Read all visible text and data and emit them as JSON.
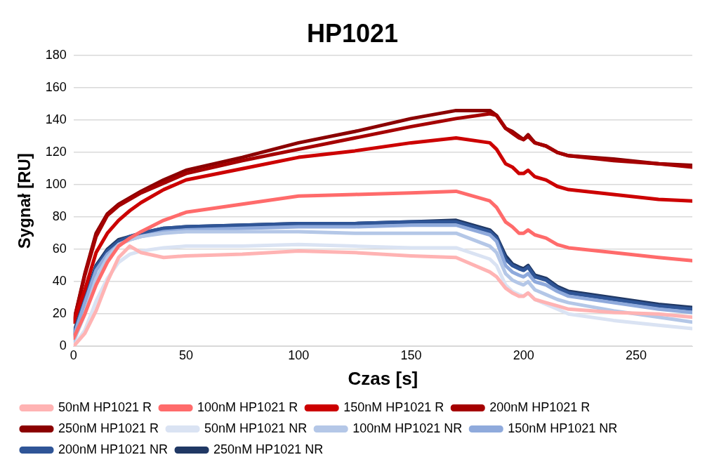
{
  "chart_data": {
    "type": "line",
    "title": "HP1021",
    "xlabel": "Czas [s]",
    "ylabel": "Sygnał [RU]",
    "x": [
      0,
      5,
      10,
      15,
      20,
      25,
      30,
      40,
      50,
      75,
      100,
      125,
      150,
      170,
      185,
      188,
      192,
      195,
      198,
      200,
      202,
      205,
      210,
      215,
      220,
      240,
      260,
      275
    ],
    "xlim": [
      0,
      275
    ],
    "xticks": [
      0,
      50,
      100,
      150,
      200,
      250
    ],
    "ylim": [
      0,
      180
    ],
    "yticks": [
      0,
      20,
      40,
      60,
      80,
      100,
      120,
      140,
      160,
      180
    ],
    "grid": "y",
    "legend": "bottom",
    "marker": "none",
    "line_style": "solid",
    "series": [
      {
        "name": "50nM HP1021 R",
        "color": "#ffb3b3",
        "values": [
          0,
          8,
          22,
          40,
          55,
          62,
          58,
          55,
          56,
          57,
          59,
          58,
          56,
          55,
          46,
          43,
          36,
          33,
          31,
          31,
          33,
          29,
          27,
          25,
          23,
          21,
          20,
          18
        ]
      },
      {
        "name": "100nM HP1021 R",
        "color": "#ff6b6b",
        "values": [
          5,
          20,
          38,
          52,
          62,
          67,
          71,
          78,
          83,
          88,
          93,
          94,
          95,
          96,
          90,
          86,
          77,
          74,
          70,
          70,
          72,
          69,
          67,
          63,
          61,
          58,
          55,
          53
        ]
      },
      {
        "name": "150nM HP1021 R",
        "color": "#cc0000",
        "values": [
          15,
          35,
          58,
          70,
          78,
          84,
          89,
          97,
          103,
          110,
          117,
          121,
          126,
          129,
          126,
          122,
          113,
          111,
          107,
          107,
          109,
          105,
          103,
          99,
          97,
          94,
          91,
          90
        ]
      },
      {
        "name": "200nM HP1021 R",
        "color": "#a50000",
        "values": [
          15,
          44,
          68,
          81,
          87,
          91,
          95,
          101,
          107,
          115,
          122,
          129,
          136,
          141,
          144,
          143,
          135,
          132,
          129,
          128,
          130,
          126,
          124,
          120,
          118,
          115,
          113,
          111
        ]
      },
      {
        "name": "250nM HP1021 R",
        "color": "#8b0000",
        "values": [
          15,
          45,
          70,
          82,
          88,
          92,
          96,
          103,
          109,
          117,
          126,
          133,
          141,
          146,
          146,
          143,
          135,
          133,
          130,
          128,
          131,
          126,
          124,
          120,
          118,
          116,
          113,
          112
        ]
      },
      {
        "name": "50nM HP1021 NR",
        "color": "#dae3f3",
        "values": [
          0,
          10,
          28,
          42,
          52,
          57,
          59,
          61,
          62,
          62,
          63,
          62,
          61,
          61,
          54,
          50,
          38,
          34,
          32,
          31,
          33,
          29,
          26,
          23,
          20,
          16,
          13,
          11
        ]
      },
      {
        "name": "100nM HP1021 NR",
        "color": "#b4c7e7",
        "values": [
          3,
          20,
          42,
          55,
          63,
          66,
          68,
          70,
          71,
          71,
          71,
          70,
          70,
          70,
          62,
          58,
          45,
          41,
          39,
          38,
          40,
          35,
          32,
          29,
          27,
          22,
          18,
          15
        ]
      },
      {
        "name": "150nM HP1021 NR",
        "color": "#8faadc",
        "values": [
          6,
          27,
          47,
          57,
          63,
          66,
          68,
          71,
          72,
          73,
          74,
          74,
          75,
          75,
          69,
          65,
          50,
          46,
          44,
          43,
          45,
          40,
          38,
          34,
          31,
          27,
          23,
          21
        ]
      },
      {
        "name": "200nM HP1021 NR",
        "color": "#2f5597",
        "values": [
          7,
          29,
          49,
          59,
          65,
          68,
          70,
          73,
          74,
          75,
          76,
          76,
          77,
          77,
          71,
          67,
          54,
          50,
          48,
          47,
          49,
          43,
          41,
          36,
          33,
          29,
          25,
          23
        ]
      },
      {
        "name": "250nM HP1021 NR",
        "color": "#203864",
        "values": [
          8,
          30,
          50,
          60,
          66,
          68,
          70,
          73,
          74,
          75,
          76,
          76,
          77,
          78,
          72,
          68,
          56,
          51,
          49,
          48,
          50,
          44,
          42,
          37,
          34,
          30,
          26,
          24
        ]
      }
    ]
  }
}
